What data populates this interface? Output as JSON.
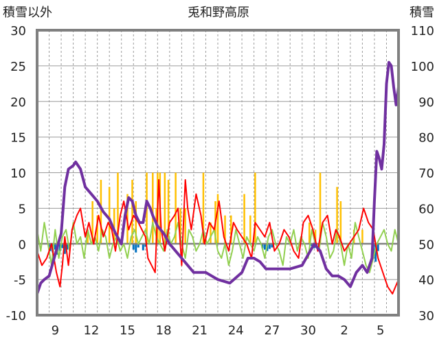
{
  "chart_data": {
    "type": "line",
    "title": "兎和野高原",
    "ylabel": "積雪以外",
    "y2label": "積雪",
    "ylim": [
      -10,
      30
    ],
    "y2lim": [
      30,
      110
    ],
    "yticks": [
      "30",
      "25",
      "20",
      "15",
      "10",
      "5",
      "0",
      "-5",
      "-10"
    ],
    "y2ticks": [
      "110",
      "100",
      "90",
      "80",
      "70",
      "60",
      "50",
      "40",
      "30"
    ],
    "xticks": [
      "9",
      "12",
      "15",
      "18",
      "21",
      "24",
      "27",
      "30",
      "2",
      "5"
    ],
    "xrange_days": [
      0,
      30
    ],
    "xtick_days": [
      1.5,
      4.5,
      7.5,
      10.5,
      13.5,
      16.5,
      19.5,
      22.5,
      25.5,
      28.5
    ],
    "grid": true,
    "series": [
      {
        "key": "snow_depth",
        "axis": "right",
        "color": "#7030a0",
        "x": [
          0,
          0.3,
          0.6,
          1.0,
          1.5,
          2.0,
          2.3,
          2.6,
          3.0,
          3.2,
          3.6,
          4.0,
          4.5,
          5.0,
          5.5,
          6.0,
          6.5,
          7.0,
          7.3,
          7.6,
          7.9,
          8.2,
          8.5,
          8.8,
          9.1,
          9.4,
          9.6,
          10.0,
          10.5,
          11.0,
          11.5,
          12.0,
          12.5,
          13.0,
          14.0,
          15.0,
          16.0,
          17.0,
          17.5,
          18.0,
          18.5,
          19.0,
          20.0,
          21.0,
          22.0,
          22.5,
          23.0,
          23.5,
          24.0,
          24.5,
          25.0,
          25.5,
          26.0,
          26.5,
          27.0,
          27.4,
          27.8,
          28.0,
          28.2,
          28.4,
          28.6,
          28.8,
          29.0,
          29.2,
          29.4,
          29.6,
          29.8,
          30.0
        ],
        "values": [
          36,
          39,
          40,
          41,
          47,
          53,
          66,
          71,
          72,
          73,
          71,
          66,
          64,
          62,
          59,
          57,
          53,
          50,
          58,
          63,
          62,
          58,
          56,
          56,
          62,
          60,
          58,
          55,
          53,
          50,
          48,
          46,
          44,
          42,
          42,
          40,
          39,
          42,
          46,
          46,
          45,
          43,
          43,
          43,
          44,
          47,
          50,
          48,
          43,
          41,
          41,
          40,
          38,
          42,
          44,
          42,
          46,
          62,
          76,
          74,
          71,
          78,
          95,
          101,
          100,
          94,
          89,
          94
        ]
      },
      {
        "key": "precip_bars",
        "axis": "left",
        "color": "#ffc000",
        "x": [
          4.2,
          4.6,
          5.0,
          5.3,
          6.0,
          6.4,
          6.7,
          7.5,
          7.9,
          8.2,
          9.1,
          9.6,
          9.9,
          10.0,
          10.2,
          10.6,
          10.9,
          11.5,
          11.9,
          12.3,
          13.8,
          14.4,
          14.8,
          15.0,
          15.6,
          16.1,
          17.2,
          17.7,
          18.1,
          22.6,
          23.1,
          23.5,
          24.9,
          25.2,
          26.3,
          27.0
        ],
        "values": [
          2,
          6,
          4,
          9,
          8,
          5,
          10,
          7,
          9,
          6,
          10,
          10,
          5,
          10,
          10,
          10,
          9,
          10,
          5,
          5,
          10,
          3,
          6,
          7,
          4,
          4,
          7,
          4,
          10,
          3,
          2,
          10,
          8,
          6,
          2,
          2
        ]
      },
      {
        "key": "red_line",
        "axis": "left",
        "color": "#ff0000",
        "x": [
          0,
          0.4,
          0.8,
          1.2,
          1.6,
          1.9,
          2.1,
          2.3,
          2.6,
          2.9,
          3.3,
          3.6,
          4.0,
          4.3,
          4.7,
          5.1,
          5.5,
          5.9,
          6.2,
          6.5,
          6.9,
          7.2,
          7.6,
          8.0,
          8.4,
          8.7,
          9.0,
          9.2,
          9.5,
          9.8,
          10.1,
          10.3,
          10.6,
          11.0,
          11.4,
          11.7,
          12.0,
          12.3,
          12.5,
          12.8,
          13.2,
          13.6,
          13.9,
          14.3,
          14.7,
          15.1,
          15.5,
          15.9,
          16.3,
          16.6,
          17.0,
          17.4,
          17.8,
          18.1,
          18.5,
          18.9,
          19.3,
          19.7,
          20.1,
          20.5,
          20.9,
          21.3,
          21.7,
          22.1,
          22.5,
          22.9,
          23.3,
          23.7,
          24.1,
          24.5,
          24.8,
          25.1,
          25.5,
          25.9,
          26.3,
          26.7,
          27.1,
          27.5,
          27.9,
          28.3,
          28.7,
          29.1,
          29.5,
          30.0
        ],
        "values": [
          -1,
          -3,
          -2,
          0,
          -4,
          -6,
          -3,
          1,
          -3,
          2,
          4,
          5,
          1,
          3,
          0,
          4,
          1,
          3,
          2,
          -1,
          4,
          6,
          2,
          4,
          3,
          2,
          1,
          -2,
          -3,
          -4,
          9,
          2,
          -1,
          3,
          4,
          5,
          -3,
          9,
          5,
          2,
          7,
          4,
          0,
          3,
          2,
          6,
          1,
          -1,
          3,
          2,
          1,
          0,
          -2,
          3,
          2,
          1,
          3,
          -1,
          0,
          2,
          1,
          -1,
          -2,
          3,
          4,
          2,
          -1,
          3,
          4,
          0,
          2,
          1,
          -1,
          0,
          1,
          2,
          5,
          3,
          2,
          -2,
          -4,
          -6,
          -7,
          -5
        ]
      },
      {
        "key": "green_line",
        "axis": "left",
        "color": "#92d050",
        "x": [
          0,
          0.3,
          0.6,
          0.9,
          1.2,
          1.5,
          1.8,
          2.1,
          2.4,
          2.7,
          3.0,
          3.3,
          3.6,
          3.9,
          4.2,
          4.5,
          4.8,
          5.1,
          5.4,
          5.7,
          6.0,
          6.3,
          6.6,
          6.9,
          7.2,
          7.5,
          7.8,
          8.1,
          8.4,
          8.7,
          9.0,
          9.3,
          9.6,
          9.9,
          10.2,
          10.5,
          10.8,
          11.1,
          11.4,
          11.7,
          12.0,
          12.3,
          12.6,
          12.9,
          13.2,
          13.5,
          13.8,
          14.1,
          14.4,
          14.7,
          15.0,
          15.3,
          15.6,
          15.9,
          16.2,
          16.5,
          16.8,
          17.1,
          17.4,
          17.7,
          18.0,
          18.3,
          18.6,
          18.9,
          19.2,
          19.5,
          19.8,
          20.1,
          20.4,
          20.7,
          21.0,
          21.3,
          21.6,
          21.9,
          22.2,
          22.5,
          22.8,
          23.1,
          23.4,
          23.7,
          24.0,
          24.3,
          24.6,
          24.9,
          25.2,
          25.5,
          25.8,
          26.1,
          26.4,
          26.7,
          27.0,
          27.3,
          27.6,
          27.9,
          28.2,
          28.5,
          28.8,
          29.1,
          29.4,
          29.7,
          30.0
        ],
        "values": [
          2,
          -1,
          3,
          0,
          -3,
          2,
          -2,
          1,
          2,
          -1,
          3,
          0,
          1,
          -2,
          2,
          0,
          1,
          -1,
          2,
          1,
          -2,
          0,
          1,
          -1,
          0,
          -2,
          1,
          2,
          0,
          1,
          2,
          0,
          3,
          1,
          0,
          -1,
          2,
          0,
          1,
          3,
          0,
          -2,
          2,
          1,
          -1,
          0,
          2,
          0,
          1,
          2,
          -1,
          -2,
          0,
          -3,
          -1,
          2,
          0,
          -2,
          1,
          0,
          -1,
          1,
          0,
          -2,
          1,
          2,
          0,
          -1,
          -3,
          1,
          0,
          2,
          -1,
          1,
          0,
          -2,
          2,
          0,
          -1,
          3,
          1,
          -2,
          -1,
          2,
          0,
          -3,
          0,
          -2,
          3,
          1,
          -1,
          -3,
          -4,
          -2,
          0,
          1,
          2,
          0,
          -1,
          2,
          0
        ]
      },
      {
        "key": "blue_bars",
        "axis": "left",
        "color": "#0070c0",
        "x": [
          1.1,
          1.3,
          1.5,
          1.7,
          1.9,
          2.1,
          2.3,
          2.5,
          2.7,
          8.0,
          8.2,
          8.4,
          8.8,
          9.0,
          18.7,
          18.9,
          19.1,
          19.3,
          19.5,
          22.8,
          23.0,
          23.2,
          27.9,
          28.1,
          28.3
        ],
        "values": [
          -1,
          -1.2,
          -0.8,
          -1.5,
          -1,
          -0.6,
          -1.4,
          -0.8,
          -0.5,
          -0.8,
          -1.2,
          -0.5,
          -0.9,
          -0.4,
          -0.6,
          -0.8,
          -1,
          -0.7,
          -0.5,
          -0.3,
          -0.6,
          -0.4,
          -1.5,
          -2.5,
          -1
        ]
      }
    ]
  }
}
